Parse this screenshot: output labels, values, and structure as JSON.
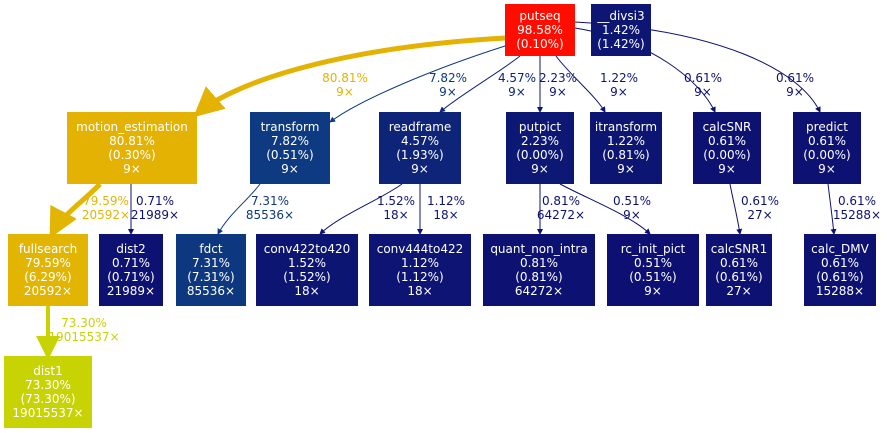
{
  "nodes": [
    {
      "id": "putseq",
      "lines": [
        "putseq",
        "98.58%",
        "(0.10%)"
      ],
      "fill": "#ff0d00",
      "text": "#ffffff"
    },
    {
      "id": "__divsi3",
      "lines": [
        "__divsi3",
        "1.42%",
        "(1.42%)"
      ],
      "fill": "#0d1773",
      "text": "#ffffff"
    },
    {
      "id": "motion_estimation",
      "lines": [
        "motion_estimation",
        "80.81%",
        "(0.30%)",
        "9×"
      ],
      "fill": "#e3b203",
      "text": "#ffffff"
    },
    {
      "id": "transform",
      "lines": [
        "transform",
        "7.82%",
        "(0.51%)",
        "9×"
      ],
      "fill": "#0d3a80",
      "text": "#ffffff"
    },
    {
      "id": "readframe",
      "lines": [
        "readframe",
        "4.57%",
        "(1.93%)",
        "9×"
      ],
      "fill": "#0d2479",
      "text": "#ffffff"
    },
    {
      "id": "putpict",
      "lines": [
        "putpict",
        "2.23%",
        "(0.00%)",
        "9×"
      ],
      "fill": "#0d1875",
      "text": "#ffffff"
    },
    {
      "id": "itransform",
      "lines": [
        "itransform",
        "1.22%",
        "(0.81%)",
        "9×"
      ],
      "fill": "#0d1573",
      "text": "#ffffff"
    },
    {
      "id": "calcSNR",
      "lines": [
        "calcSNR",
        "0.61%",
        "(0.00%)",
        "9×"
      ],
      "fill": "#0d1172",
      "text": "#ffffff"
    },
    {
      "id": "predict",
      "lines": [
        "predict",
        "0.61%",
        "(0.00%)",
        "9×"
      ],
      "fill": "#0d1172",
      "text": "#ffffff"
    },
    {
      "id": "fullsearch",
      "lines": [
        "fullsearch",
        "79.59%",
        "(6.29%)",
        "20592×"
      ],
      "fill": "#e3b503",
      "text": "#ffffff"
    },
    {
      "id": "dist2",
      "lines": [
        "dist2",
        "0.71%",
        "(0.71%)",
        "21989×"
      ],
      "fill": "#0d1172",
      "text": "#ffffff"
    },
    {
      "id": "fdct",
      "lines": [
        "fdct",
        "7.31%",
        "(7.31%)",
        "85536×"
      ],
      "fill": "#0d377f",
      "text": "#ffffff"
    },
    {
      "id": "conv422to420",
      "lines": [
        "conv422to420",
        "1.52%",
        "(1.52%)",
        "18×"
      ],
      "fill": "#0d1573",
      "text": "#ffffff"
    },
    {
      "id": "conv444to422",
      "lines": [
        "conv444to422",
        "1.12%",
        "(1.12%)",
        "18×"
      ],
      "fill": "#0d1473",
      "text": "#ffffff"
    },
    {
      "id": "quant_non_intra",
      "lines": [
        "quant_non_intra",
        "0.81%",
        "(0.81%)",
        "64272×"
      ],
      "fill": "#0d1272",
      "text": "#ffffff"
    },
    {
      "id": "rc_init_pict",
      "lines": [
        "rc_init_pict",
        "0.51%",
        "(0.51%)",
        "9×"
      ],
      "fill": "#0d1072",
      "text": "#ffffff"
    },
    {
      "id": "calcSNR1",
      "lines": [
        "calcSNR1",
        "0.61%",
        "(0.61%)",
        "27×"
      ],
      "fill": "#0d1172",
      "text": "#ffffff"
    },
    {
      "id": "calc_DMV",
      "lines": [
        "calc_DMV",
        "0.61%",
        "(0.61%)",
        "15288×"
      ],
      "fill": "#0d1172",
      "text": "#ffffff"
    },
    {
      "id": "dist1",
      "lines": [
        "dist1",
        "73.30%",
        "(73.30%)",
        "19015537×"
      ],
      "fill": "#c8d303",
      "text": "#ffffff"
    }
  ],
  "edges": [
    {
      "from": "putseq",
      "to": "motion_estimation",
      "lines": [
        "80.81%",
        "9×"
      ],
      "color": "#e3b203"
    },
    {
      "from": "putseq",
      "to": "transform",
      "lines": [
        "7.82%",
        "9×"
      ],
      "color": "#0d3a80"
    },
    {
      "from": "putseq",
      "to": "readframe",
      "lines": [
        "4.57%",
        "9×"
      ],
      "color": "#0d2479"
    },
    {
      "from": "putseq",
      "to": "putpict",
      "lines": [
        "2.23%",
        "9×"
      ],
      "color": "#0d1875"
    },
    {
      "from": "putseq",
      "to": "itransform",
      "lines": [
        "1.22%",
        "9×"
      ],
      "color": "#0d1573"
    },
    {
      "from": "putseq",
      "to": "calcSNR",
      "lines": [
        "0.61%",
        "9×"
      ],
      "color": "#0d1172"
    },
    {
      "from": "putseq",
      "to": "predict",
      "lines": [
        "0.61%",
        "9×"
      ],
      "color": "#0d1172"
    },
    {
      "from": "motion_estimation",
      "to": "fullsearch",
      "lines": [
        "79.59%",
        "20592×"
      ],
      "color": "#e3b503"
    },
    {
      "from": "motion_estimation",
      "to": "dist2",
      "lines": [
        "0.71%",
        "21989×"
      ],
      "color": "#0d1172"
    },
    {
      "from": "transform",
      "to": "fdct",
      "lines": [
        "7.31%",
        "85536×"
      ],
      "color": "#0d377f"
    },
    {
      "from": "readframe",
      "to": "conv422to420",
      "lines": [
        "1.52%",
        "18×"
      ],
      "color": "#0d1573"
    },
    {
      "from": "readframe",
      "to": "conv444to422",
      "lines": [
        "1.12%",
        "18×"
      ],
      "color": "#0d1473"
    },
    {
      "from": "putpict",
      "to": "quant_non_intra",
      "lines": [
        "0.81%",
        "64272×"
      ],
      "color": "#0d1272"
    },
    {
      "from": "putpict",
      "to": "rc_init_pict",
      "lines": [
        "0.51%",
        "9×"
      ],
      "color": "#0d1072"
    },
    {
      "from": "calcSNR",
      "to": "calcSNR1",
      "lines": [
        "0.61%",
        "27×"
      ],
      "color": "#0d1172"
    },
    {
      "from": "predict",
      "to": "calc_DMV",
      "lines": [
        "0.61%",
        "15288×"
      ],
      "color": "#0d1172"
    },
    {
      "from": "fullsearch",
      "to": "dist1",
      "lines": [
        "73.30%",
        "19015537×"
      ],
      "color": "#c8d303"
    }
  ]
}
